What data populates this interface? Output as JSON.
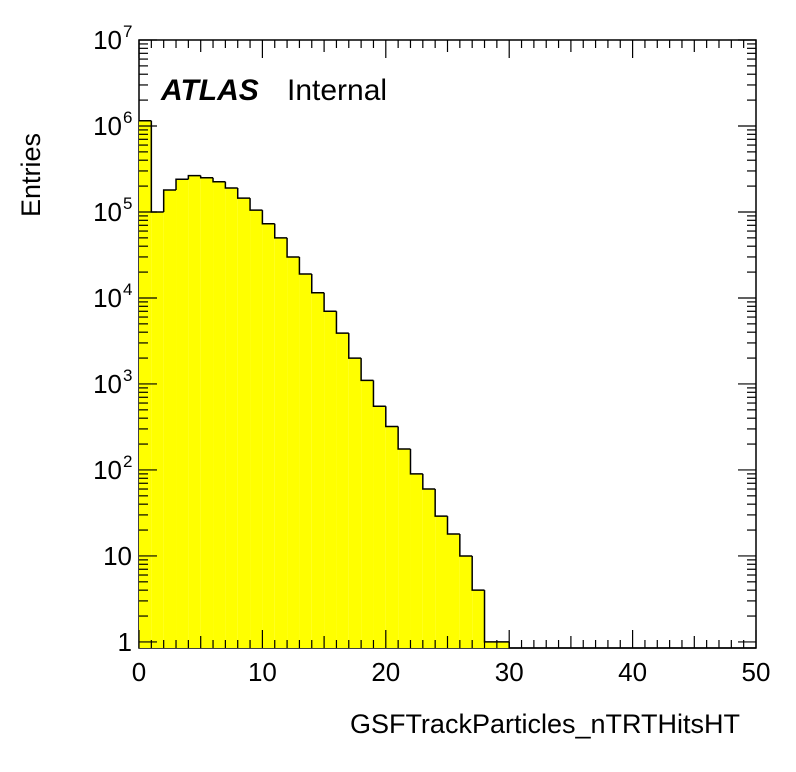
{
  "chart_data": {
    "type": "histogram",
    "title": "",
    "xlabel": "GSFTrackParticles_nTRTHitsHT",
    "ylabel": "Entries",
    "label": {
      "experiment": "ATLAS",
      "status": "Internal"
    },
    "xlim": [
      0,
      50
    ],
    "ylim": [
      0.85,
      10000000
    ],
    "log_y": true,
    "grid": false,
    "fill_color": "#ffff00",
    "line_color": "#000000",
    "bin_width": 1,
    "x_ticks": [
      "0",
      "10",
      "20",
      "30",
      "40",
      "50"
    ],
    "y_ticks": [
      {
        "value": 1,
        "base": "1",
        "exp": ""
      },
      {
        "value": 10,
        "base": "10",
        "exp": ""
      },
      {
        "value": 100,
        "base": "10",
        "exp": "2"
      },
      {
        "value": 1000,
        "base": "10",
        "exp": "3"
      },
      {
        "value": 10000,
        "base": "10",
        "exp": "4"
      },
      {
        "value": 100000,
        "base": "10",
        "exp": "5"
      },
      {
        "value": 1000000,
        "base": "10",
        "exp": "6"
      },
      {
        "value": 10000000,
        "base": "10",
        "exp": "7"
      }
    ],
    "bins_low_edge": [
      0,
      1,
      2,
      3,
      4,
      5,
      6,
      7,
      8,
      9,
      10,
      11,
      12,
      13,
      14,
      15,
      16,
      17,
      18,
      19,
      20,
      21,
      22,
      23,
      24,
      25,
      26,
      27,
      28,
      29,
      30,
      31,
      32,
      33,
      34,
      35,
      36,
      37,
      38,
      39,
      40,
      41,
      42,
      43,
      44,
      45,
      46,
      47,
      48,
      49
    ],
    "values": [
      1150000,
      100000,
      180000,
      240000,
      265000,
      250000,
      225000,
      190000,
      145000,
      105000,
      73000,
      50000,
      30000,
      19000,
      11500,
      7000,
      3900,
      2000,
      1100,
      550,
      320,
      175,
      90,
      60,
      29,
      18,
      10,
      4,
      1,
      1,
      0,
      0,
      0,
      0,
      0,
      0,
      0,
      0,
      0,
      0,
      0,
      0,
      0,
      0,
      0,
      0,
      0,
      0,
      0,
      0
    ]
  }
}
